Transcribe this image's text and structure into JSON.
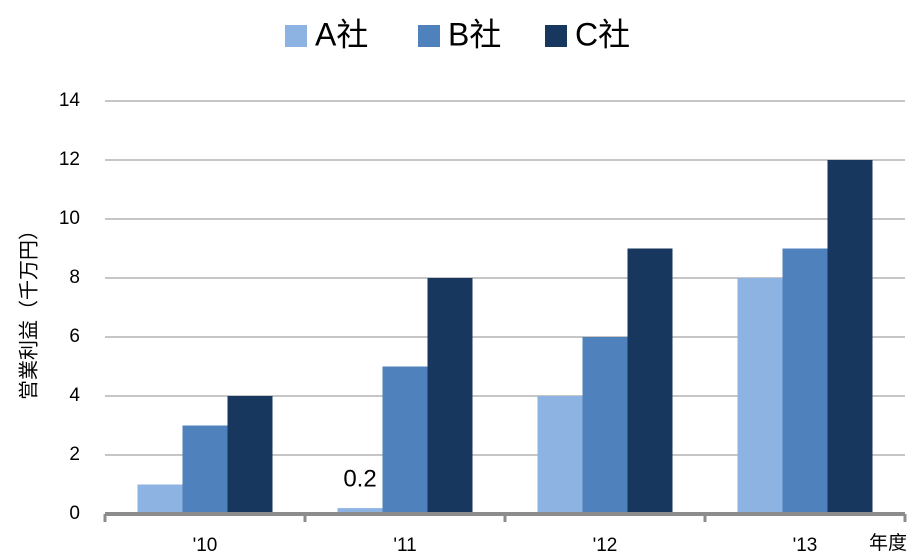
{
  "chart_data": {
    "type": "bar",
    "categories": [
      "'10",
      "'11",
      "'12",
      "'13"
    ],
    "series": [
      {
        "name": "A社",
        "color": "#8db3e2",
        "values": [
          1,
          0.2,
          4,
          8
        ],
        "value_labels": [
          null,
          "0.2",
          null,
          null
        ]
      },
      {
        "name": "B社",
        "color": "#4f81bd",
        "values": [
          3,
          5,
          6,
          9
        ]
      },
      {
        "name": "C社",
        "color": "#17375e",
        "values": [
          4,
          8,
          9,
          12
        ]
      }
    ],
    "ylabel": "営業利益（千万円）",
    "xlabel": "年度",
    "ylim": [
      0,
      14
    ],
    "yticks": [
      0,
      2,
      4,
      6,
      8,
      10,
      12,
      14
    ],
    "grid": true,
    "legend": "top"
  }
}
